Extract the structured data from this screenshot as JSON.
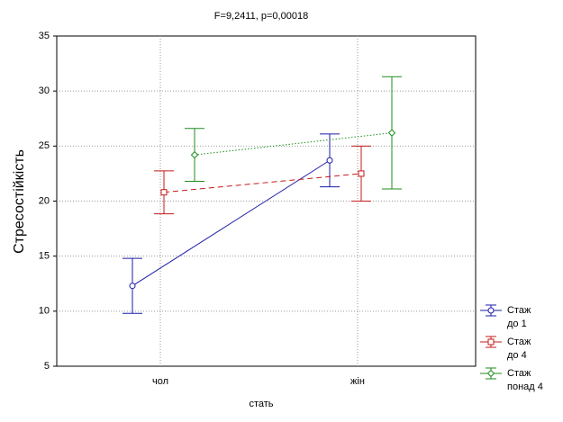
{
  "chart_data": {
    "type": "line",
    "title": "F=9,2411, p=0,00018",
    "x_label": "стать",
    "y_label": "Стресостійкість",
    "categories": [
      "чол",
      "жін"
    ],
    "series": [
      {
        "name": "Стаж до 1",
        "color": "#1c1ca8",
        "line_style": "solid",
        "marker": "circle",
        "values": [
          12.3,
          23.7
        ],
        "errors": [
          2.5,
          2.4
        ]
      },
      {
        "name": "Стаж до 4",
        "color": "#c41a1a",
        "line_style": "dashed",
        "marker": "square",
        "values": [
          20.8,
          22.5
        ],
        "errors": [
          1.95,
          2.5
        ]
      },
      {
        "name": "Стаж понад 4",
        "color": "#1e8c1e",
        "line_style": "dotted",
        "marker": "diamond",
        "values": [
          24.2,
          26.2
        ],
        "errors": [
          2.4,
          5.1
        ]
      }
    ],
    "ylim": [
      5,
      35
    ],
    "yticks": [
      5,
      10,
      15,
      20,
      25,
      30,
      35
    ],
    "grid": true,
    "legend": "lower right"
  }
}
